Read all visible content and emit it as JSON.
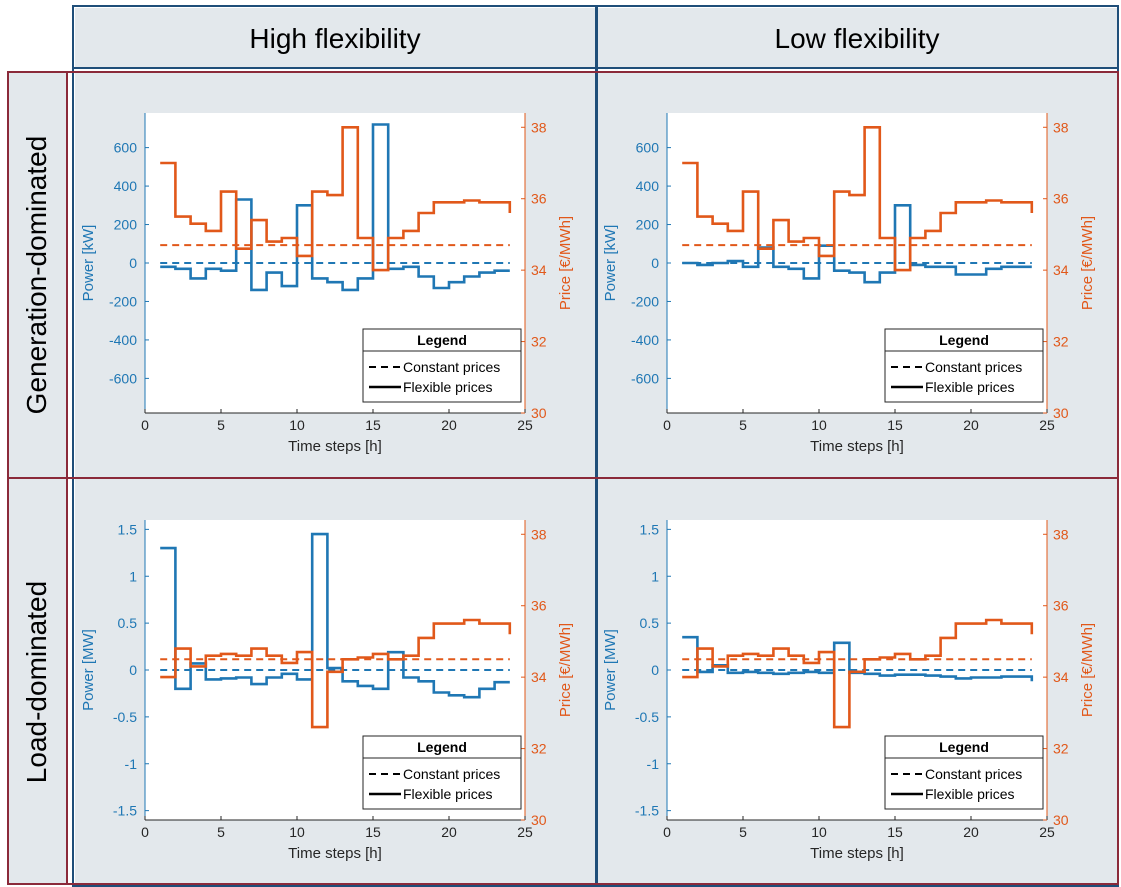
{
  "columns": [
    "High flexibility",
    "Low flexibility"
  ],
  "rows": [
    "Generation-dominated",
    "Load-dominated"
  ],
  "colors": {
    "power": "#1f77b4",
    "price": "#e1581a",
    "panel_bg": "#e3e8ec",
    "col_border": "#1f4e79",
    "row_border": "#8b2a3a"
  },
  "legend": {
    "title": "Legend",
    "constant": "Constant prices",
    "flexible": "Flexible prices"
  },
  "chart_data": [
    {
      "type": "line",
      "row": "Generation-dominated",
      "column": "High flexibility",
      "xlabel": "Time steps [h]",
      "ylabel_left": "Power [kW]",
      "ylabel_right": "Price [€/MWh]",
      "xlim": [
        0,
        25
      ],
      "xticks": [
        0,
        5,
        10,
        15,
        20,
        25
      ],
      "ylim_left": [
        -780,
        780
      ],
      "yticks_left": [
        -600,
        -400,
        -200,
        0,
        200,
        400,
        600
      ],
      "ylim_right": [
        30,
        38.4
      ],
      "yticks_right": [
        30,
        32,
        34,
        36,
        38
      ],
      "x": [
        1,
        2,
        3,
        4,
        5,
        6,
        7,
        8,
        9,
        10,
        11,
        12,
        13,
        14,
        15,
        16,
        17,
        18,
        19,
        20,
        21,
        22,
        23,
        24
      ],
      "series": [
        {
          "name": "Constant prices",
          "axis": "left",
          "style": "dashed",
          "values": [
            0,
            0,
            0,
            0,
            0,
            0,
            0,
            0,
            0,
            0,
            0,
            0,
            0,
            0,
            0,
            0,
            0,
            0,
            0,
            0,
            0,
            0,
            0,
            0
          ]
        },
        {
          "name": "Flexible prices",
          "axis": "left",
          "style": "solid",
          "values": [
            -20,
            -30,
            -80,
            -30,
            -40,
            330,
            -140,
            -50,
            -120,
            300,
            -80,
            -100,
            -140,
            -80,
            720,
            -30,
            -20,
            -70,
            -130,
            -100,
            -70,
            -50,
            -40,
            -40
          ]
        },
        {
          "name": "Constant prices",
          "axis": "right",
          "style": "dashed",
          "values": [
            34.7,
            34.7,
            34.7,
            34.7,
            34.7,
            34.7,
            34.7,
            34.7,
            34.7,
            34.7,
            34.7,
            34.7,
            34.7,
            34.7,
            34.7,
            34.7,
            34.7,
            34.7,
            34.7,
            34.7,
            34.7,
            34.7,
            34.7,
            34.7
          ]
        },
        {
          "name": "Flexible prices",
          "axis": "right",
          "style": "solid",
          "values": [
            37.0,
            35.5,
            35.3,
            35.1,
            36.2,
            34.6,
            35.4,
            34.8,
            34.9,
            34.4,
            36.2,
            36.1,
            38.0,
            34.9,
            34.0,
            34.9,
            35.1,
            35.6,
            35.9,
            35.9,
            35.95,
            35.9,
            35.9,
            35.6
          ]
        }
      ]
    },
    {
      "type": "line",
      "row": "Generation-dominated",
      "column": "Low flexibility",
      "xlabel": "Time steps [h]",
      "ylabel_left": "Power [kW]",
      "ylabel_right": "Price [€/MWh]",
      "xlim": [
        0,
        25
      ],
      "xticks": [
        0,
        5,
        10,
        15,
        20,
        25
      ],
      "ylim_left": [
        -780,
        780
      ],
      "yticks_left": [
        -600,
        -400,
        -200,
        0,
        200,
        400,
        600
      ],
      "ylim_right": [
        30,
        38.4
      ],
      "yticks_right": [
        30,
        32,
        34,
        36,
        38
      ],
      "x": [
        1,
        2,
        3,
        4,
        5,
        6,
        7,
        8,
        9,
        10,
        11,
        12,
        13,
        14,
        15,
        16,
        17,
        18,
        19,
        20,
        21,
        22,
        23,
        24
      ],
      "series": [
        {
          "name": "Constant prices",
          "axis": "left",
          "style": "dashed",
          "values": [
            0,
            0,
            0,
            0,
            0,
            0,
            0,
            0,
            0,
            0,
            0,
            0,
            0,
            0,
            0,
            0,
            0,
            0,
            0,
            0,
            0,
            0,
            0,
            0
          ]
        },
        {
          "name": "Flexible prices",
          "axis": "left",
          "style": "solid",
          "values": [
            0,
            -10,
            0,
            10,
            -20,
            80,
            -20,
            -30,
            -80,
            90,
            -40,
            -50,
            -100,
            -50,
            300,
            -10,
            -20,
            -20,
            -60,
            -60,
            -30,
            -20,
            -20,
            -20
          ]
        },
        {
          "name": "Constant prices",
          "axis": "right",
          "style": "dashed",
          "values": [
            34.7,
            34.7,
            34.7,
            34.7,
            34.7,
            34.7,
            34.7,
            34.7,
            34.7,
            34.7,
            34.7,
            34.7,
            34.7,
            34.7,
            34.7,
            34.7,
            34.7,
            34.7,
            34.7,
            34.7,
            34.7,
            34.7,
            34.7,
            34.7
          ]
        },
        {
          "name": "Flexible prices",
          "axis": "right",
          "style": "solid",
          "values": [
            37.0,
            35.5,
            35.3,
            35.1,
            36.2,
            34.6,
            35.4,
            34.8,
            34.9,
            34.4,
            36.2,
            36.1,
            38.0,
            34.9,
            34.0,
            34.9,
            35.1,
            35.6,
            35.9,
            35.9,
            35.95,
            35.9,
            35.9,
            35.6
          ]
        }
      ]
    },
    {
      "type": "line",
      "row": "Load-dominated",
      "column": "High flexibility",
      "xlabel": "Time steps [h]",
      "ylabel_left": "Power [MW]",
      "ylabel_right": "Price [€/MWh]",
      "xlim": [
        0,
        25
      ],
      "xticks": [
        0,
        5,
        10,
        15,
        20,
        25
      ],
      "ylim_left": [
        -1.6,
        1.6
      ],
      "yticks_left": [
        -1.5,
        -1,
        -0.5,
        0,
        0.5,
        1,
        1.5
      ],
      "ylim_right": [
        30,
        38.4
      ],
      "yticks_right": [
        30,
        32,
        34,
        36,
        38
      ],
      "x": [
        1,
        2,
        3,
        4,
        5,
        6,
        7,
        8,
        9,
        10,
        11,
        12,
        13,
        14,
        15,
        16,
        17,
        18,
        19,
        20,
        21,
        22,
        23,
        24
      ],
      "series": [
        {
          "name": "Constant prices",
          "axis": "left",
          "style": "dashed",
          "values": [
            0,
            0,
            0,
            0,
            0,
            0,
            0,
            0,
            0,
            0,
            0,
            0,
            0,
            0,
            0,
            0,
            0,
            0,
            0,
            0,
            0,
            0,
            0,
            0
          ]
        },
        {
          "name": "Flexible prices",
          "axis": "left",
          "style": "solid",
          "values": [
            1.3,
            -0.2,
            0.07,
            -0.1,
            -0.09,
            -0.08,
            -0.15,
            -0.08,
            -0.04,
            -0.1,
            1.45,
            0.02,
            -0.12,
            -0.17,
            -0.2,
            0.19,
            -0.08,
            -0.12,
            -0.24,
            -0.27,
            -0.29,
            -0.2,
            -0.13,
            -0.13
          ]
        },
        {
          "name": "Constant prices",
          "axis": "right",
          "style": "dashed",
          "values": [
            34.5,
            34.5,
            34.5,
            34.5,
            34.5,
            34.5,
            34.5,
            34.5,
            34.5,
            34.5,
            34.5,
            34.5,
            34.5,
            34.5,
            34.5,
            34.5,
            34.5,
            34.5,
            34.5,
            34.5,
            34.5,
            34.5,
            34.5,
            34.5
          ]
        },
        {
          "name": "Flexible prices",
          "axis": "right",
          "style": "solid",
          "values": [
            34.0,
            34.8,
            34.3,
            34.6,
            34.65,
            34.6,
            34.8,
            34.6,
            34.4,
            34.7,
            32.6,
            34.15,
            34.5,
            34.55,
            34.65,
            34.5,
            34.6,
            35.1,
            35.5,
            35.5,
            35.6,
            35.5,
            35.5,
            35.2
          ]
        }
      ]
    },
    {
      "type": "line",
      "row": "Load-dominated",
      "column": "Low flexibility",
      "xlabel": "Time steps [h]",
      "ylabel_left": "Power [MW]",
      "ylabel_right": "Price [€/MWh]",
      "xlim": [
        0,
        25
      ],
      "xticks": [
        0,
        5,
        10,
        15,
        20,
        25
      ],
      "ylim_left": [
        -1.6,
        1.6
      ],
      "yticks_left": [
        -1.5,
        -1,
        -0.5,
        0,
        0.5,
        1,
        1.5
      ],
      "ylim_right": [
        30,
        38.4
      ],
      "yticks_right": [
        30,
        32,
        34,
        36,
        38
      ],
      "x": [
        1,
        2,
        3,
        4,
        5,
        6,
        7,
        8,
        9,
        10,
        11,
        12,
        13,
        14,
        15,
        16,
        17,
        18,
        19,
        20,
        21,
        22,
        23,
        24
      ],
      "series": [
        {
          "name": "Constant prices",
          "axis": "left",
          "style": "dashed",
          "values": [
            0,
            0,
            0,
            0,
            0,
            0,
            0,
            0,
            0,
            0,
            0,
            0,
            0,
            0,
            0,
            0,
            0,
            0,
            0,
            0,
            0,
            0,
            0,
            0
          ]
        },
        {
          "name": "Flexible prices",
          "axis": "left",
          "style": "solid",
          "values": [
            0.35,
            -0.02,
            0.05,
            -0.03,
            -0.02,
            -0.03,
            -0.04,
            -0.03,
            -0.02,
            -0.03,
            0.29,
            -0.03,
            -0.04,
            -0.06,
            -0.05,
            -0.05,
            -0.06,
            -0.07,
            -0.09,
            -0.08,
            -0.08,
            -0.07,
            -0.07,
            -0.12
          ]
        },
        {
          "name": "Constant prices",
          "axis": "right",
          "style": "dashed",
          "values": [
            34.5,
            34.5,
            34.5,
            34.5,
            34.5,
            34.5,
            34.5,
            34.5,
            34.5,
            34.5,
            34.5,
            34.5,
            34.5,
            34.5,
            34.5,
            34.5,
            34.5,
            34.5,
            34.5,
            34.5,
            34.5,
            34.5,
            34.5,
            34.5
          ]
        },
        {
          "name": "Flexible prices",
          "axis": "right",
          "style": "solid",
          "values": [
            34.0,
            34.8,
            34.3,
            34.6,
            34.65,
            34.6,
            34.8,
            34.6,
            34.4,
            34.7,
            32.6,
            34.15,
            34.5,
            34.55,
            34.65,
            34.5,
            34.6,
            35.1,
            35.5,
            35.5,
            35.6,
            35.5,
            35.5,
            35.2
          ]
        }
      ]
    }
  ]
}
